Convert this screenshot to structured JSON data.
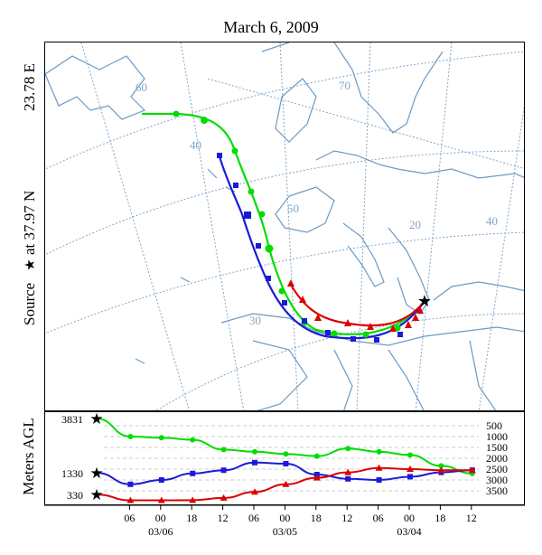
{
  "figure": {
    "title": "March 6, 2009"
  },
  "source": {
    "label": "Source",
    "at_text": "at 37.97 N",
    "lon_text": "23.78 E"
  },
  "map": {
    "lat_labels": [
      "60",
      "40",
      "50",
      "30"
    ],
    "lon_labels": [
      "70",
      "20",
      "40"
    ],
    "colors": {
      "land": "#6b9ac4",
      "grid": "#7fa6cc",
      "background": "#ffffff"
    }
  },
  "altitude_panel": {
    "ylabel": "Meters AGL",
    "start_heights": [
      "3831",
      "1330",
      "330"
    ],
    "right_ticks": [
      "3500",
      "3000",
      "2500",
      "2000",
      "1500",
      "1000",
      "500"
    ]
  },
  "time_axis": {
    "hour_labels": [
      "06",
      "00",
      "18",
      "12",
      "06",
      "00",
      "18",
      "12",
      "06",
      "00",
      "18",
      "12"
    ],
    "date_labels": [
      "03/06",
      "03/05",
      "03/04"
    ]
  },
  "chart_data": {
    "type": "line",
    "title": "March 6, 2009",
    "ylabel": "Meters AGL",
    "x": [
      "03/06 06",
      "03/06 00",
      "03/05 18",
      "03/05 12",
      "03/05 06",
      "03/05 00",
      "03/04 18",
      "03/04 12",
      "03/04 06",
      "03/04 00",
      "03/03 18",
      "03/03 12"
    ],
    "series": [
      {
        "color": "#00dd00",
        "start_height": 3831,
        "values": [
          3000,
          2950,
          2850,
          2400,
          2300,
          2200,
          2100,
          2450,
          2300,
          2150,
          1650,
          1300
        ]
      },
      {
        "color": "#1a1ad8",
        "start_height": 1330,
        "values": [
          800,
          1000,
          1300,
          1450,
          1800,
          1750,
          1250,
          1050,
          1000,
          1150,
          1350,
          1450
        ]
      },
      {
        "color": "#dd0000",
        "start_height": 330,
        "values": [
          60,
          60,
          70,
          170,
          450,
          800,
          1100,
          1350,
          1550,
          1500,
          1450,
          1450
        ]
      }
    ],
    "ylim": [
      0,
      4000
    ],
    "y_ticks": [
      500,
      1000,
      1500,
      2000,
      2500,
      3000,
      3500
    ],
    "grid": true
  }
}
